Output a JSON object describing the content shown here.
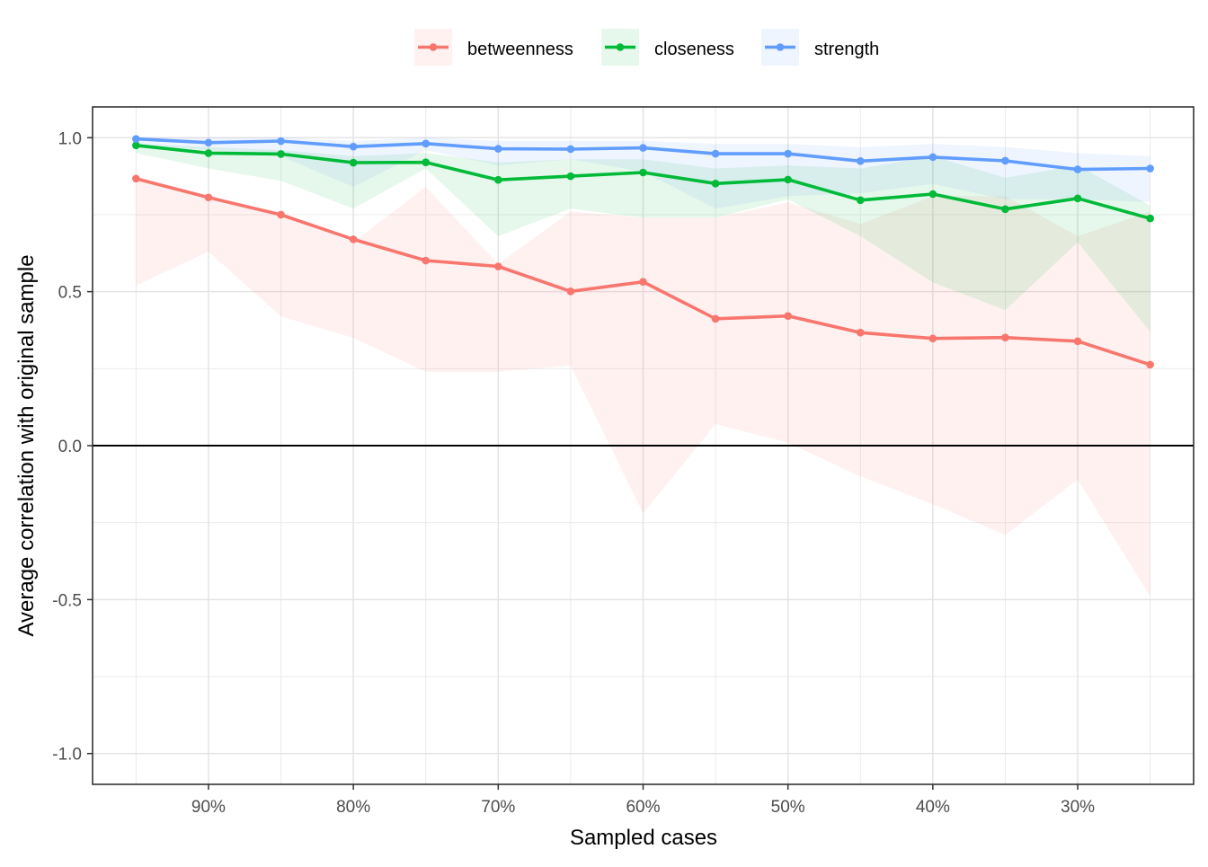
{
  "chart_data": {
    "type": "line",
    "title": "",
    "xlabel": "Sampled cases",
    "ylabel": "Average correlation with original sample",
    "x": [
      95,
      90,
      85,
      80,
      75,
      70,
      65,
      60,
      55,
      50,
      45,
      40,
      35,
      30,
      25
    ],
    "x_unit": "%",
    "xlim": [
      98,
      22
    ],
    "x_reversed": true,
    "x_ticks": [
      90,
      80,
      70,
      60,
      50,
      40,
      30
    ],
    "x_tick_labels": [
      "90%",
      "80%",
      "70%",
      "60%",
      "50%",
      "40%",
      "30%"
    ],
    "ylim": [
      -1.1,
      1.1
    ],
    "y_ticks": [
      1.0,
      0.5,
      0.0,
      -0.5,
      -1.0
    ],
    "y_tick_labels": [
      "1.0",
      "0.5",
      "0.0",
      "-0.5",
      "-1.0"
    ],
    "reference_line": 0.0,
    "grid": true,
    "legend_position": "top",
    "series": [
      {
        "name": "betweenness",
        "color": "#F8766D",
        "values": [
          0.867,
          0.806,
          0.75,
          0.67,
          0.601,
          0.582,
          0.501,
          0.532,
          0.412,
          0.421,
          0.367,
          0.348,
          0.351,
          0.339,
          0.263
        ],
        "band_lower": [
          0.52,
          0.63,
          0.42,
          0.35,
          0.24,
          0.24,
          0.26,
          -0.22,
          0.07,
          0.01,
          -0.1,
          -0.19,
          -0.29,
          -0.11,
          -0.49
        ],
        "band_upper": [
          0.87,
          0.8,
          0.75,
          0.66,
          0.84,
          0.59,
          0.76,
          0.74,
          0.74,
          0.79,
          0.72,
          0.81,
          0.81,
          0.68,
          0.76
        ]
      },
      {
        "name": "closeness",
        "color": "#00BA38",
        "values": [
          0.975,
          0.95,
          0.947,
          0.919,
          0.92,
          0.863,
          0.875,
          0.887,
          0.851,
          0.864,
          0.797,
          0.817,
          0.768,
          0.803,
          0.738
        ],
        "band_lower": [
          0.95,
          0.9,
          0.86,
          0.77,
          0.9,
          0.68,
          0.77,
          0.74,
          0.74,
          0.8,
          0.68,
          0.53,
          0.44,
          0.66,
          0.37
        ],
        "band_upper": [
          0.98,
          0.97,
          0.96,
          0.94,
          0.95,
          0.92,
          0.93,
          0.93,
          0.9,
          0.91,
          0.9,
          0.94,
          0.87,
          0.91,
          0.78
        ]
      },
      {
        "name": "strength",
        "color": "#619CFF",
        "values": [
          0.996,
          0.984,
          0.989,
          0.971,
          0.981,
          0.964,
          0.963,
          0.967,
          0.948,
          0.948,
          0.924,
          0.937,
          0.925,
          0.897,
          0.9
        ],
        "band_lower": [
          0.98,
          0.96,
          0.94,
          0.84,
          0.96,
          0.91,
          0.93,
          0.89,
          0.77,
          0.81,
          0.82,
          0.85,
          0.8,
          0.8,
          0.79
        ],
        "band_upper": [
          1.0,
          1.0,
          1.0,
          0.99,
          1.0,
          0.99,
          0.99,
          0.99,
          0.98,
          0.98,
          0.97,
          0.98,
          0.97,
          0.95,
          0.94
        ]
      }
    ]
  }
}
